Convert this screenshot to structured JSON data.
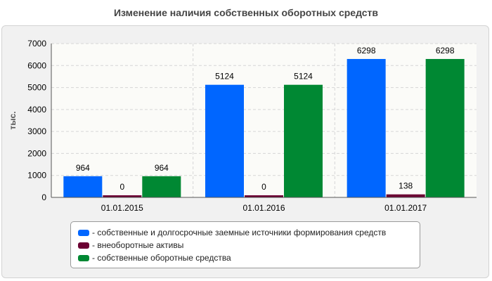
{
  "chart_data": {
    "type": "bar",
    "title": "Изменение наличия собственных оборотных средств",
    "ylabel": "тыс.",
    "xlabel": "",
    "categories": [
      "01.01.2015",
      "01.01.2016",
      "01.01.2017"
    ],
    "ylim": [
      0,
      7000
    ],
    "yticks": [
      0,
      1000,
      2000,
      3000,
      4000,
      5000,
      6000,
      7000
    ],
    "grid": true,
    "legend_position": "bottom",
    "series": [
      {
        "name": "- собственные и долгосрочные заемные источники формирования средств",
        "values": [
          964,
          5124,
          6298
        ],
        "labels": [
          "964",
          "5124",
          "6298"
        ],
        "color": "#0066ff"
      },
      {
        "name": "- внеоборотные активы",
        "values": [
          0,
          0,
          138
        ],
        "labels": [
          "0",
          "0",
          "138"
        ],
        "color": "#6b0032"
      },
      {
        "name": "- собственные оборотные средства",
        "values": [
          964,
          5124,
          6298
        ],
        "labels": [
          "964",
          "5124",
          "6298"
        ],
        "color": "#008833"
      }
    ]
  }
}
